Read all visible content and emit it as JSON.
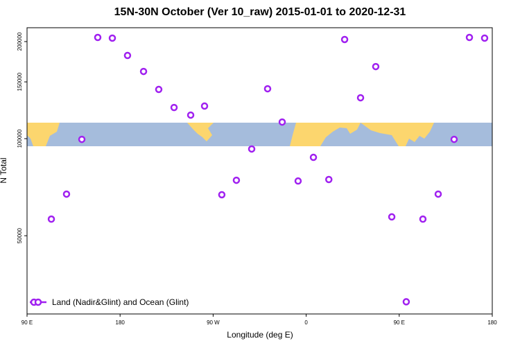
{
  "chart_data": {
    "type": "scatter",
    "title": "15N-30N October (Ver 10_raw)   2015-01-01 to 2020-12-31",
    "x_label": "Longitude (deg E)",
    "y_label": "N Total",
    "xlim": [
      90,
      540
    ],
    "xticks": [
      {
        "value": 90,
        "label": "90 E"
      },
      180,
      {
        "value": 270,
        "label": "90 W"
      },
      {
        "value": 360,
        "label": "0"
      },
      {
        "value": 450,
        "label": "90 E"
      },
      {
        "value": 540,
        "label": "180"
      }
    ],
    "ylim": [
      28600,
      220800
    ],
    "ylog": true,
    "yticks": [
      50000,
      100000,
      150000,
      200000
    ],
    "legend": "bottom-left",
    "series": [
      {
        "name": "Land (Nadir&Glint) and Ocean (Glint)",
        "color": "#a020f0",
        "x": [
          113.5,
          128.2,
          143,
          158.4,
          172.5,
          187.2,
          202.7,
          217.4,
          232.2,
          248.3,
          261.7,
          278.4,
          292.5,
          307.3,
          322.7,
          336.8,
          352.2,
          367,
          381.9,
          397.2,
          412.6,
          427.3,
          442.8,
          456.8,
          472.9,
          487.7,
          503.1,
          517.9,
          532.6
        ],
        "values": [
          56300,
          67300,
          99500,
          206000,
          205000,
          181100,
          161600,
          142100,
          124900,
          118300,
          126200,
          67000,
          74300,
          92900,
          142800,
          112600,
          73900,
          87500,
          74700,
          203000,
          133900,
          167300,
          57200,
          31200,
          56300,
          67300,
          99500,
          206000,
          205000
        ]
      }
    ]
  }
}
